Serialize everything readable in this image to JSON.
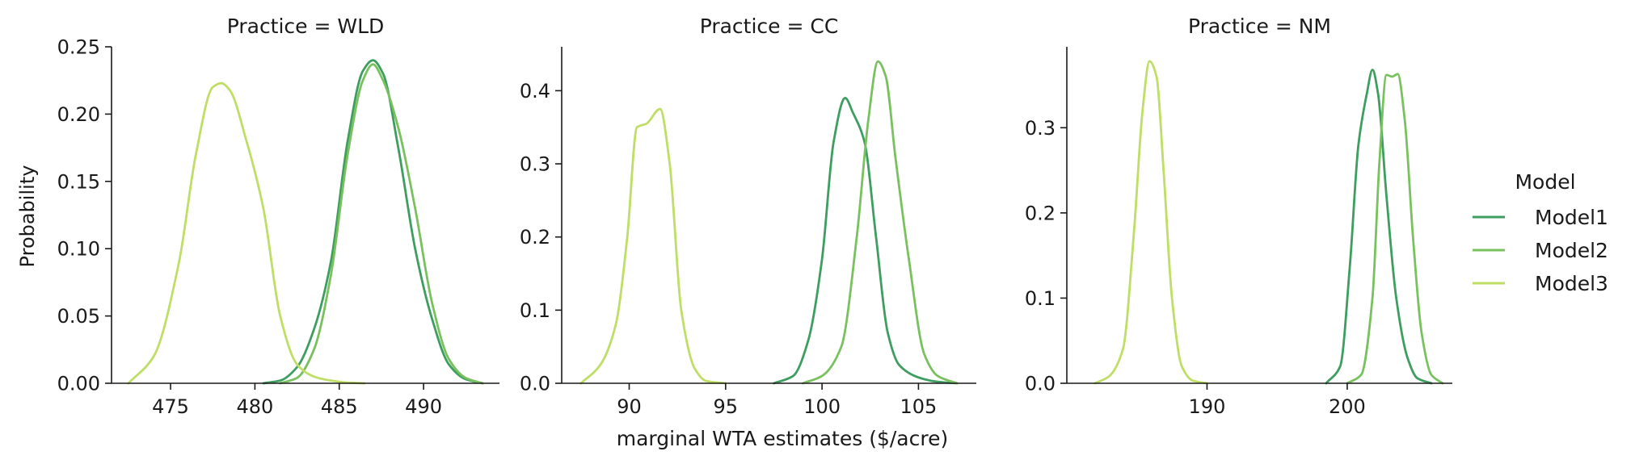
{
  "ylabel": "Probability",
  "xlabel": "marginal WTA estimates ($/acre)",
  "legend": {
    "title": "Model",
    "placement": "right",
    "entries": [
      "Model1",
      "Model2",
      "Model3"
    ]
  },
  "colors": {
    "Model1": "#3d9e5f",
    "Model2": "#79c15e",
    "Model3": "#bede66",
    "axis": "#1a1a1a"
  },
  "chart_data": [
    {
      "type": "line",
      "title": "Practice = WLD",
      "xlim": [
        471.5,
        494.5
      ],
      "ylim": [
        0,
        0.25
      ],
      "xticks": [
        475,
        480,
        485,
        490
      ],
      "yticks": [
        0.0,
        0.05,
        0.1,
        0.15,
        0.2,
        0.25
      ],
      "ytick_decimals": 2,
      "series": [
        {
          "name": "Model1",
          "x": [
            480.5,
            481.5,
            482.5,
            483.5,
            484.5,
            485.5,
            486.4,
            487.0,
            487.6,
            488.5,
            489.5,
            490.5,
            491.5,
            492.5,
            493.5
          ],
          "y": [
            0.0,
            0.002,
            0.012,
            0.04,
            0.09,
            0.18,
            0.232,
            0.24,
            0.23,
            0.175,
            0.1,
            0.048,
            0.014,
            0.003,
            0.0
          ]
        },
        {
          "name": "Model2",
          "x": [
            481.5,
            482.5,
            483.5,
            484.5,
            485.5,
            486.4,
            487.0,
            487.6,
            488.5,
            489.5,
            490.5,
            491.5,
            492.5,
            493.5
          ],
          "y": [
            0.0,
            0.004,
            0.025,
            0.08,
            0.17,
            0.225,
            0.237,
            0.225,
            0.19,
            0.13,
            0.06,
            0.018,
            0.004,
            0.0
          ]
        },
        {
          "name": "Model3",
          "x": [
            472.5,
            474.0,
            475.5,
            476.5,
            477.5,
            478.0,
            478.5,
            479.5,
            480.5,
            481.5,
            482.5,
            483.5,
            484.5,
            485.5,
            486.5
          ],
          "y": [
            0.0,
            0.02,
            0.09,
            0.17,
            0.22,
            0.223,
            0.218,
            0.18,
            0.13,
            0.05,
            0.014,
            0.005,
            0.002,
            0.0005,
            0.0
          ]
        }
      ]
    },
    {
      "type": "line",
      "title": "Practice = CC",
      "xlim": [
        86.5,
        108.0
      ],
      "ylim": [
        0,
        0.46
      ],
      "xticks": [
        90,
        95,
        100,
        105
      ],
      "yticks": [
        0.0,
        0.1,
        0.2,
        0.3,
        0.4
      ],
      "ytick_decimals": 1,
      "series": [
        {
          "name": "Model1",
          "x": [
            97.5,
            98.5,
            99.3,
            100.0,
            100.6,
            101.2,
            101.6,
            102.2,
            102.8,
            103.4,
            104.0,
            105.0,
            106.0,
            107.0
          ],
          "y": [
            0.0,
            0.01,
            0.06,
            0.17,
            0.33,
            0.39,
            0.37,
            0.33,
            0.2,
            0.07,
            0.025,
            0.008,
            0.002,
            0.0
          ]
        },
        {
          "name": "Model2",
          "x": [
            99.0,
            100.0,
            101.0,
            101.8,
            102.4,
            102.9,
            103.3,
            103.8,
            104.5,
            105.3,
            106.0,
            107.0
          ],
          "y": [
            0.0,
            0.01,
            0.05,
            0.2,
            0.36,
            0.44,
            0.42,
            0.31,
            0.17,
            0.04,
            0.01,
            0.0
          ]
        },
        {
          "name": "Model3",
          "x": [
            87.5,
            88.5,
            89.3,
            89.9,
            90.4,
            90.9,
            91.6,
            92.1,
            92.7,
            93.4,
            94.0,
            95.0
          ],
          "y": [
            0.0,
            0.025,
            0.08,
            0.2,
            0.35,
            0.355,
            0.375,
            0.3,
            0.1,
            0.02,
            0.003,
            0.0
          ]
        }
      ]
    },
    {
      "type": "line",
      "title": "Practice = NM",
      "xlim": [
        180.0,
        207.5
      ],
      "ylim": [
        0,
        0.395
      ],
      "xticks": [
        190,
        200
      ],
      "yticks": [
        0.0,
        0.1,
        0.2,
        0.3
      ],
      "ytick_decimals": 1,
      "series": [
        {
          "name": "Model1",
          "x": [
            198.5,
            199.5,
            200.2,
            200.8,
            201.4,
            201.8,
            202.2,
            202.8,
            203.5,
            204.3,
            205.0,
            206.0
          ],
          "y": [
            0.0,
            0.02,
            0.14,
            0.28,
            0.34,
            0.368,
            0.34,
            0.22,
            0.1,
            0.03,
            0.006,
            0.0
          ]
        },
        {
          "name": "Model2",
          "x": [
            200.0,
            201.0,
            201.8,
            202.3,
            202.8,
            203.2,
            203.6,
            204.1,
            204.7,
            205.3,
            206.0,
            206.8
          ],
          "y": [
            0.0,
            0.01,
            0.1,
            0.26,
            0.362,
            0.36,
            0.363,
            0.31,
            0.17,
            0.06,
            0.01,
            0.0
          ]
        },
        {
          "name": "Model3",
          "x": [
            182.0,
            183.0,
            184.0,
            184.8,
            185.4,
            185.9,
            186.4,
            186.9,
            187.5,
            188.2,
            189.0,
            190.0
          ],
          "y": [
            0.0,
            0.008,
            0.04,
            0.18,
            0.32,
            0.378,
            0.36,
            0.25,
            0.1,
            0.02,
            0.003,
            0.0
          ]
        }
      ]
    }
  ]
}
